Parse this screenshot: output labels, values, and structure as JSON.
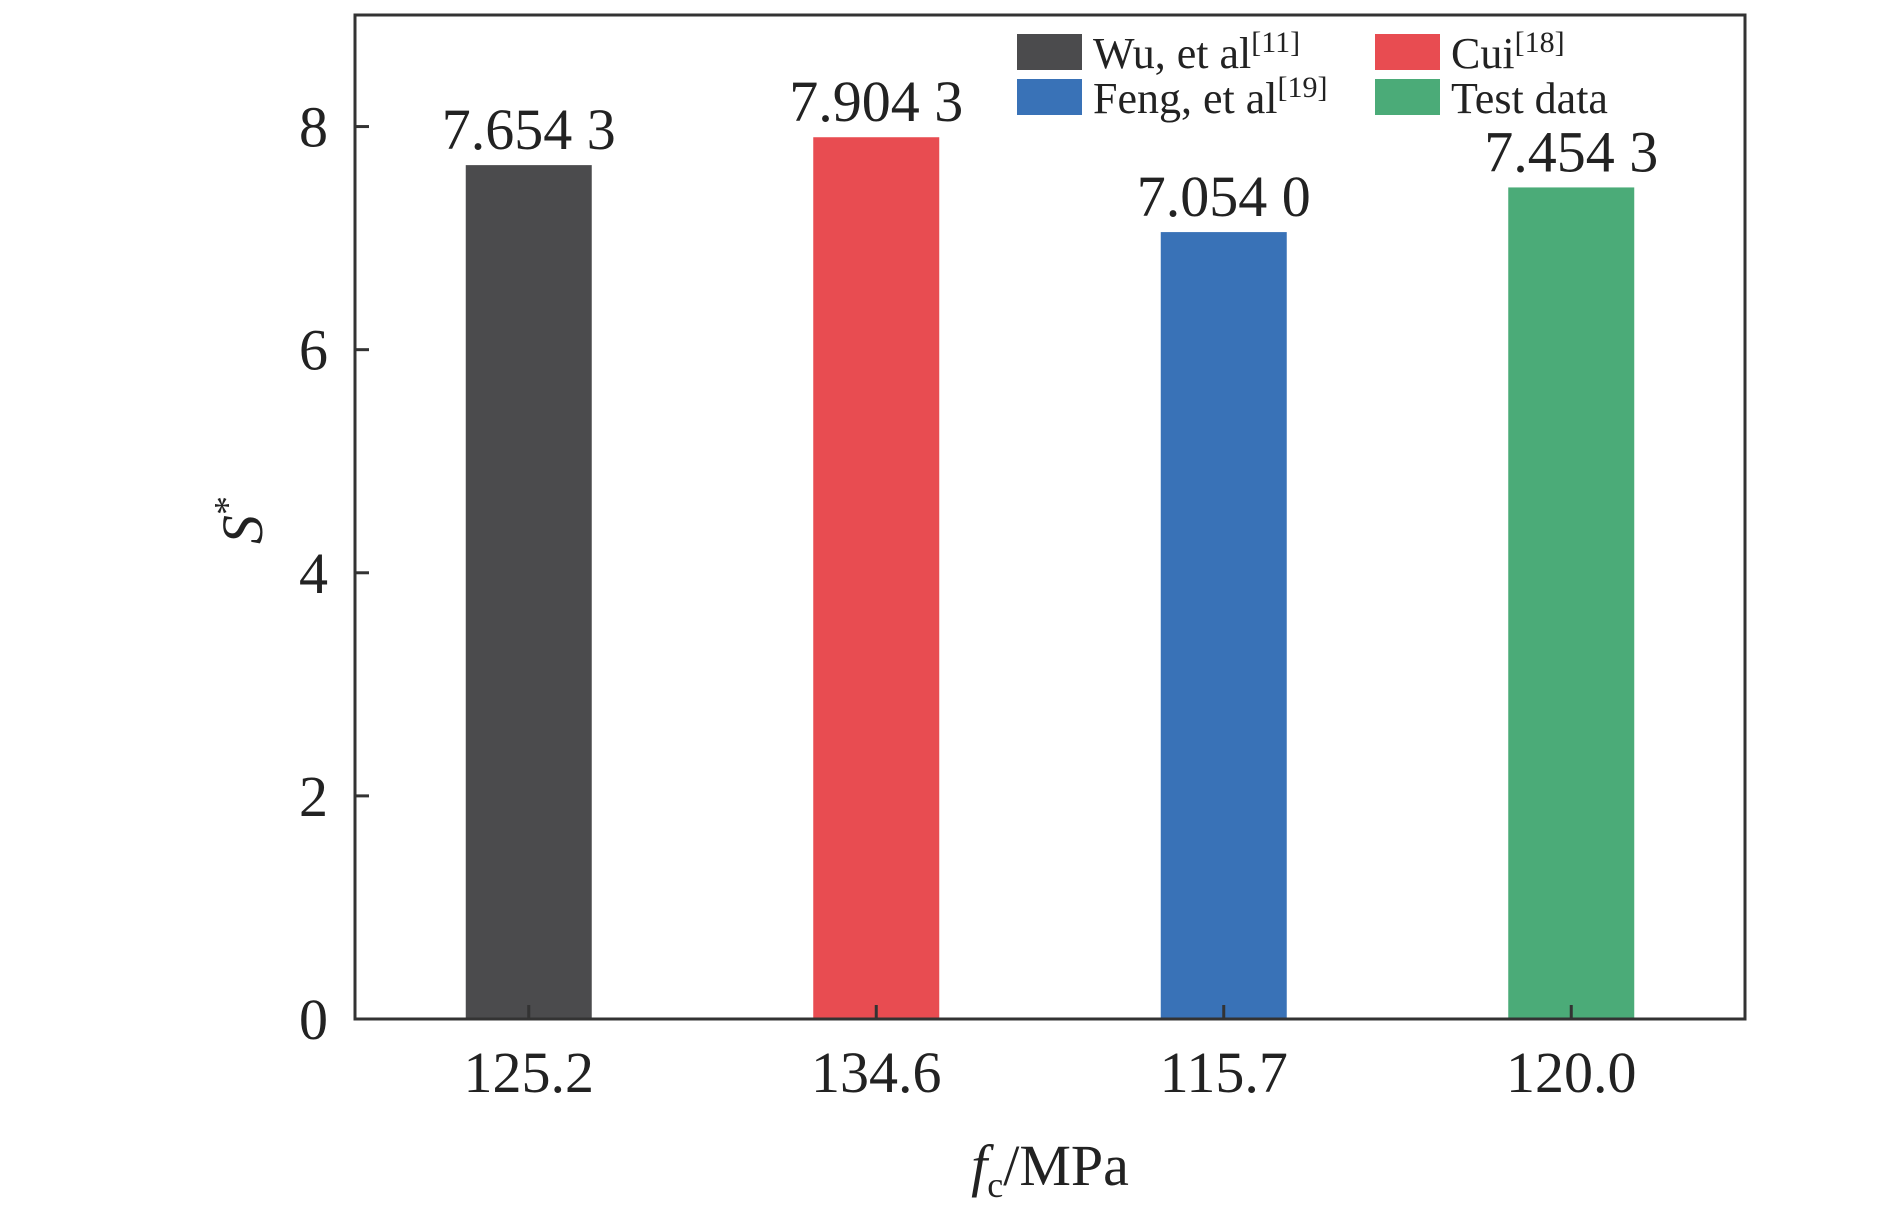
{
  "chart_data": {
    "type": "bar",
    "categories": [
      "125.2",
      "134.6",
      "115.7",
      "120.0"
    ],
    "values": [
      7.6543,
      7.9043,
      7.054,
      7.4543
    ],
    "value_labels": [
      "7.654 3",
      "7.904 3",
      "7.054 0",
      "7.454 3"
    ],
    "colors": [
      "#4b4b4d",
      "#e84c51",
      "#3972b7",
      "#4bab78"
    ],
    "ylim": [
      0,
      9
    ],
    "yticks": [
      0,
      2,
      4,
      6,
      8
    ],
    "grid": false,
    "legend_placement": "top-right",
    "xlabel": {
      "main": "f",
      "sub": "c",
      "rest": "/MPa"
    },
    "ylabel": {
      "main": "S",
      "sup": "*"
    },
    "legend": [
      {
        "name": "Wu, et al",
        "ref": "[11]",
        "color": "#4b4b4d"
      },
      {
        "name": "Cui",
        "ref": "[18]",
        "color": "#e84c51"
      },
      {
        "name": "Feng, et al",
        "ref": "[19]",
        "color": "#3972b7"
      },
      {
        "name": "Test data",
        "ref": "",
        "color": "#4bab78"
      }
    ]
  }
}
